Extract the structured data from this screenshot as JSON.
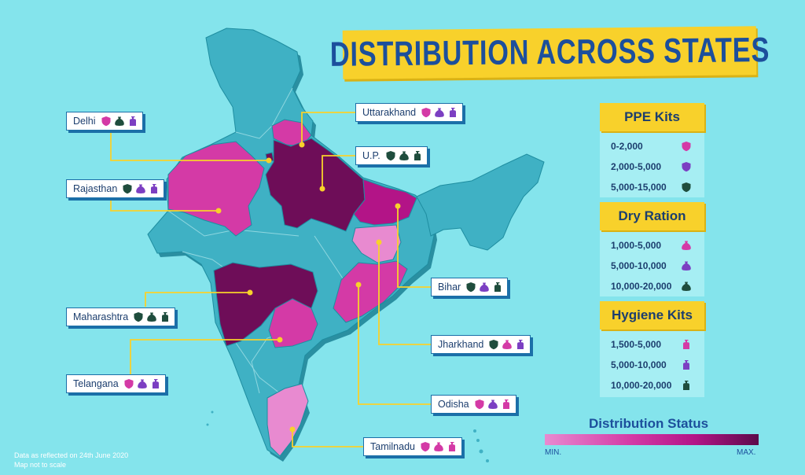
{
  "title": "DISTRIBUTION ACROSS STATES",
  "colors": {
    "background": "#84e4ec",
    "base_state": "#3fb1c4",
    "min": "#e88ad0",
    "mid": "#d43aa6",
    "high": "#b31487",
    "max": "#6e0d58",
    "banner": "#f8d12b",
    "line": "#f8d12b"
  },
  "states": [
    {
      "name": "Delhi",
      "icons": [
        "ppe-0-2000-icon",
        "dry-ration-10000-20000-icon",
        "hygiene-5000-10000-icon"
      ]
    },
    {
      "name": "Rajasthan",
      "icons": [
        "ppe-5000-15000-icon",
        "dry-ration-5000-10000-icon",
        "hygiene-5000-10000-icon"
      ]
    },
    {
      "name": "Maharashtra",
      "icons": [
        "ppe-5000-15000-icon",
        "dry-ration-10000-20000-icon",
        "hygiene-10000-20000-icon"
      ]
    },
    {
      "name": "Telangana",
      "icons": [
        "ppe-0-2000-icon",
        "dry-ration-5000-10000-icon",
        "hygiene-5000-10000-icon"
      ]
    },
    {
      "name": "Uttarakhand",
      "icons": [
        "ppe-0-2000-icon",
        "dry-ration-5000-10000-icon",
        "hygiene-5000-10000-icon"
      ]
    },
    {
      "name": "U.P.",
      "icons": [
        "ppe-5000-15000-icon",
        "dry-ration-10000-20000-icon",
        "hygiene-10000-20000-icon"
      ]
    },
    {
      "name": "Bihar",
      "icons": [
        "ppe-5000-15000-icon",
        "dry-ration-5000-10000-icon",
        "hygiene-10000-20000-icon"
      ]
    },
    {
      "name": "Jharkhand",
      "icons": [
        "ppe-5000-15000-icon",
        "dry-ration-1000-5000-icon",
        "hygiene-5000-10000-icon"
      ]
    },
    {
      "name": "Odisha",
      "icons": [
        "ppe-0-2000-icon",
        "dry-ration-5000-10000-icon",
        "hygiene-1500-5000-icon"
      ]
    },
    {
      "name": "Tamilnadu",
      "icons": [
        "ppe-0-2000-icon",
        "dry-ration-1000-5000-icon",
        "hygiene-1500-5000-icon"
      ]
    }
  ],
  "legend": {
    "ppe": {
      "title": "PPE Kits",
      "rows": [
        "0-2,000",
        "2,000-5,000",
        "5,000-15,000"
      ]
    },
    "dry": {
      "title": "Dry Ration",
      "rows": [
        "1,000-5,000",
        "5,000-10,000",
        "10,000-20,000"
      ]
    },
    "hygiene": {
      "title": "Hygiene Kits",
      "rows": [
        "1,500-5,000",
        "5,000-10,000",
        "10,000-20,000"
      ]
    }
  },
  "status": {
    "title": "Distribution Status",
    "min": "MIN.",
    "max": "MAX."
  },
  "footnote": {
    "line1": "Data as reflected on 24th June 2020",
    "line2": "Map not to scale"
  }
}
